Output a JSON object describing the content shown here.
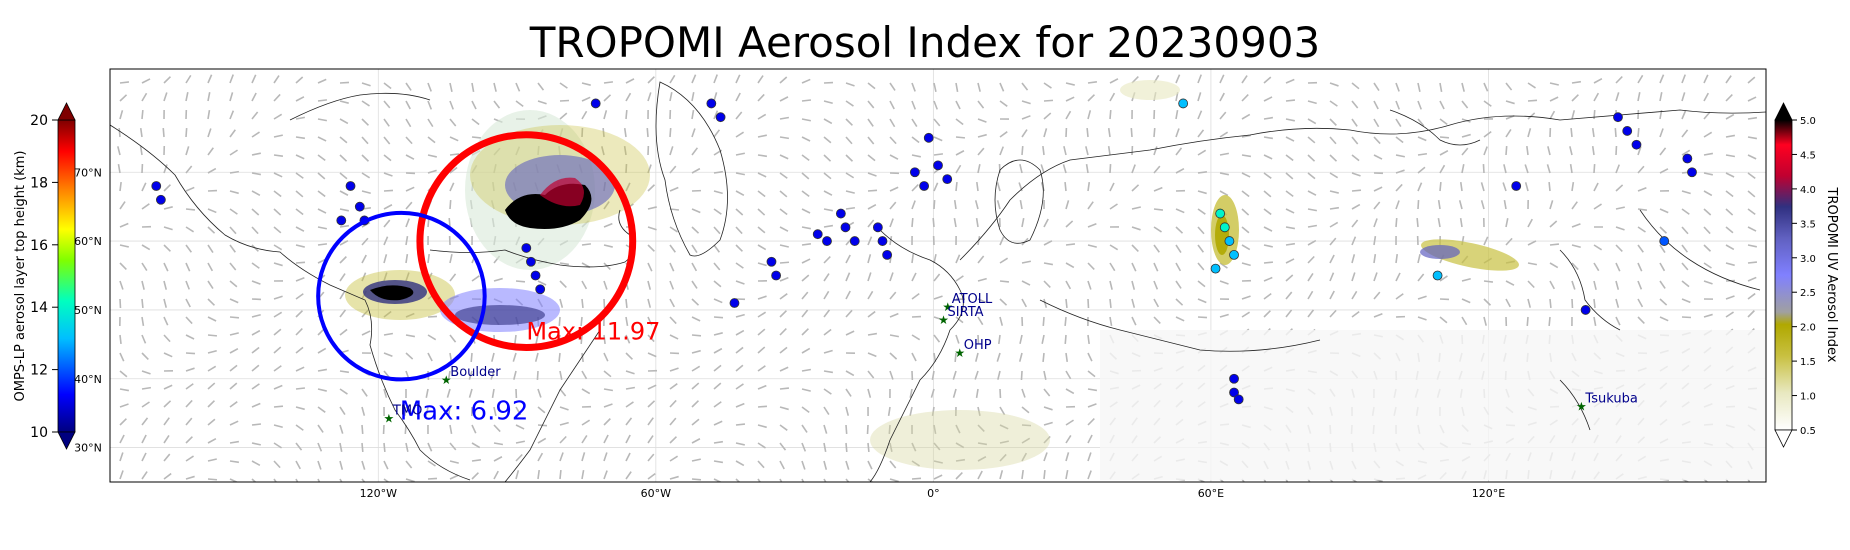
{
  "title": "TROPOMI Aerosol Index for 20230903",
  "left_colorbar": {
    "label": "OMPS-LP aerosol layer top height (km)",
    "ticks": [
      "20",
      "18",
      "16",
      "14",
      "12",
      "10"
    ],
    "tick_values": [
      20,
      18,
      16,
      14,
      12,
      10
    ],
    "range": [
      10,
      20
    ],
    "colormap": [
      "#00007f",
      "#0000ff",
      "#00bfff",
      "#00ffbf",
      "#7fff00",
      "#ffff00",
      "#ff7f00",
      "#ff0000",
      "#7f0000"
    ]
  },
  "right_colorbar": {
    "label": "TROPOMI UV Aerosol Index",
    "ticks": [
      "5.0",
      "4.5",
      "4.0",
      "3.5",
      "3.0",
      "2.5",
      "2.0",
      "1.5",
      "1.0",
      "0.5"
    ],
    "tick_values": [
      5.0,
      4.5,
      4.0,
      3.5,
      3.0,
      2.5,
      2.0,
      1.5,
      1.0,
      0.5
    ],
    "range": [
      0.5,
      5.0
    ],
    "colormap": [
      "#ffffff",
      "#e8e8c0",
      "#c8c040",
      "#b0a800",
      "#a0a0a0",
      "#8080ff",
      "#6060c0",
      "#303080",
      "#c00030",
      "#ff0020",
      "#000000"
    ]
  },
  "lat_labels": [
    "70°N",
    "60°N",
    "50°N",
    "40°N",
    "30°N"
  ],
  "lat_values": [
    70,
    60,
    50,
    40,
    30
  ],
  "lon_labels": [
    "120°W",
    "60°W",
    "0°",
    "60°E",
    "120°E"
  ],
  "lon_values": [
    -120,
    -60,
    0,
    60,
    120
  ],
  "circles": [
    {
      "name": "red-max-circle",
      "color": "#ff0000",
      "label": "Max: 11.97",
      "center_lon": -88,
      "center_lat": 60,
      "radius_deg": 23
    },
    {
      "name": "blue-max-circle",
      "color": "#0000ff",
      "label": "Max: 6.92",
      "center_lon": -115,
      "center_lat": 52,
      "radius_deg": 18
    }
  ],
  "stations": [
    {
      "name": "TMO",
      "lon": -117.7,
      "lat": 34.4
    },
    {
      "name": "Boulder",
      "lon": -105.3,
      "lat": 40.0
    },
    {
      "name": "ATOLL",
      "lon": 3.1,
      "lat": 50.6
    },
    {
      "name": "SIRTA",
      "lon": 2.2,
      "lat": 48.7
    },
    {
      "name": "OHP",
      "lon": 5.7,
      "lat": 43.9
    },
    {
      "name": "Tsukuba",
      "lon": 140.1,
      "lat": 36.1
    }
  ],
  "omps_points": [
    {
      "lon": -168,
      "lat": 68,
      "h": 11
    },
    {
      "lon": -167,
      "lat": 66,
      "h": 11
    },
    {
      "lon": -126,
      "lat": 68,
      "h": 11
    },
    {
      "lon": -124,
      "lat": 65,
      "h": 11
    },
    {
      "lon": -123,
      "lat": 63,
      "h": 11
    },
    {
      "lon": -128,
      "lat": 63,
      "h": 11
    },
    {
      "lon": -73,
      "lat": 80,
      "h": 11
    },
    {
      "lon": -48,
      "lat": 80,
      "h": 11
    },
    {
      "lon": -46,
      "lat": 78,
      "h": 11
    },
    {
      "lon": -88,
      "lat": 59,
      "h": 11
    },
    {
      "lon": -87,
      "lat": 57,
      "h": 11
    },
    {
      "lon": -86,
      "lat": 55,
      "h": 11
    },
    {
      "lon": -85,
      "lat": 53,
      "h": 11
    },
    {
      "lon": -35,
      "lat": 57,
      "h": 11
    },
    {
      "lon": -34,
      "lat": 55,
      "h": 11
    },
    {
      "lon": -43,
      "lat": 51,
      "h": 11
    },
    {
      "lon": -25,
      "lat": 61,
      "h": 11
    },
    {
      "lon": -23,
      "lat": 60,
      "h": 11
    },
    {
      "lon": -20,
      "lat": 64,
      "h": 11
    },
    {
      "lon": -19,
      "lat": 62,
      "h": 11
    },
    {
      "lon": -17,
      "lat": 60,
      "h": 11
    },
    {
      "lon": -12,
      "lat": 62,
      "h": 11
    },
    {
      "lon": -11,
      "lat": 60,
      "h": 11
    },
    {
      "lon": -10,
      "lat": 58,
      "h": 11
    },
    {
      "lon": -4,
      "lat": 70,
      "h": 11
    },
    {
      "lon": -2,
      "lat": 68,
      "h": 11
    },
    {
      "lon": -1,
      "lat": 75,
      "h": 11
    },
    {
      "lon": 1,
      "lat": 71,
      "h": 11
    },
    {
      "lon": 3,
      "lat": 69,
      "h": 11
    },
    {
      "lon": 54,
      "lat": 80,
      "h": 13
    },
    {
      "lon": 62,
      "lat": 64,
      "h": 14
    },
    {
      "lon": 63,
      "lat": 62,
      "h": 14
    },
    {
      "lon": 64,
      "lat": 60,
      "h": 13
    },
    {
      "lon": 65,
      "lat": 58,
      "h": 13
    },
    {
      "lon": 61,
      "lat": 56,
      "h": 13
    },
    {
      "lon": 65,
      "lat": 40,
      "h": 11
    },
    {
      "lon": 65,
      "lat": 38,
      "h": 11
    },
    {
      "lon": 66,
      "lat": 37,
      "h": 11
    },
    {
      "lon": 109,
      "lat": 55,
      "h": 13
    },
    {
      "lon": 126,
      "lat": 68,
      "h": 11
    },
    {
      "lon": 141,
      "lat": 50,
      "h": 11
    },
    {
      "lon": 148,
      "lat": 78,
      "h": 11
    },
    {
      "lon": 150,
      "lat": 76,
      "h": 11
    },
    {
      "lon": 152,
      "lat": 74,
      "h": 11
    },
    {
      "lon": 163,
      "lat": 72,
      "h": 11
    },
    {
      "lon": 164,
      "lat": 70,
      "h": 11
    },
    {
      "lon": 158,
      "lat": 60,
      "h": 12
    }
  ]
}
